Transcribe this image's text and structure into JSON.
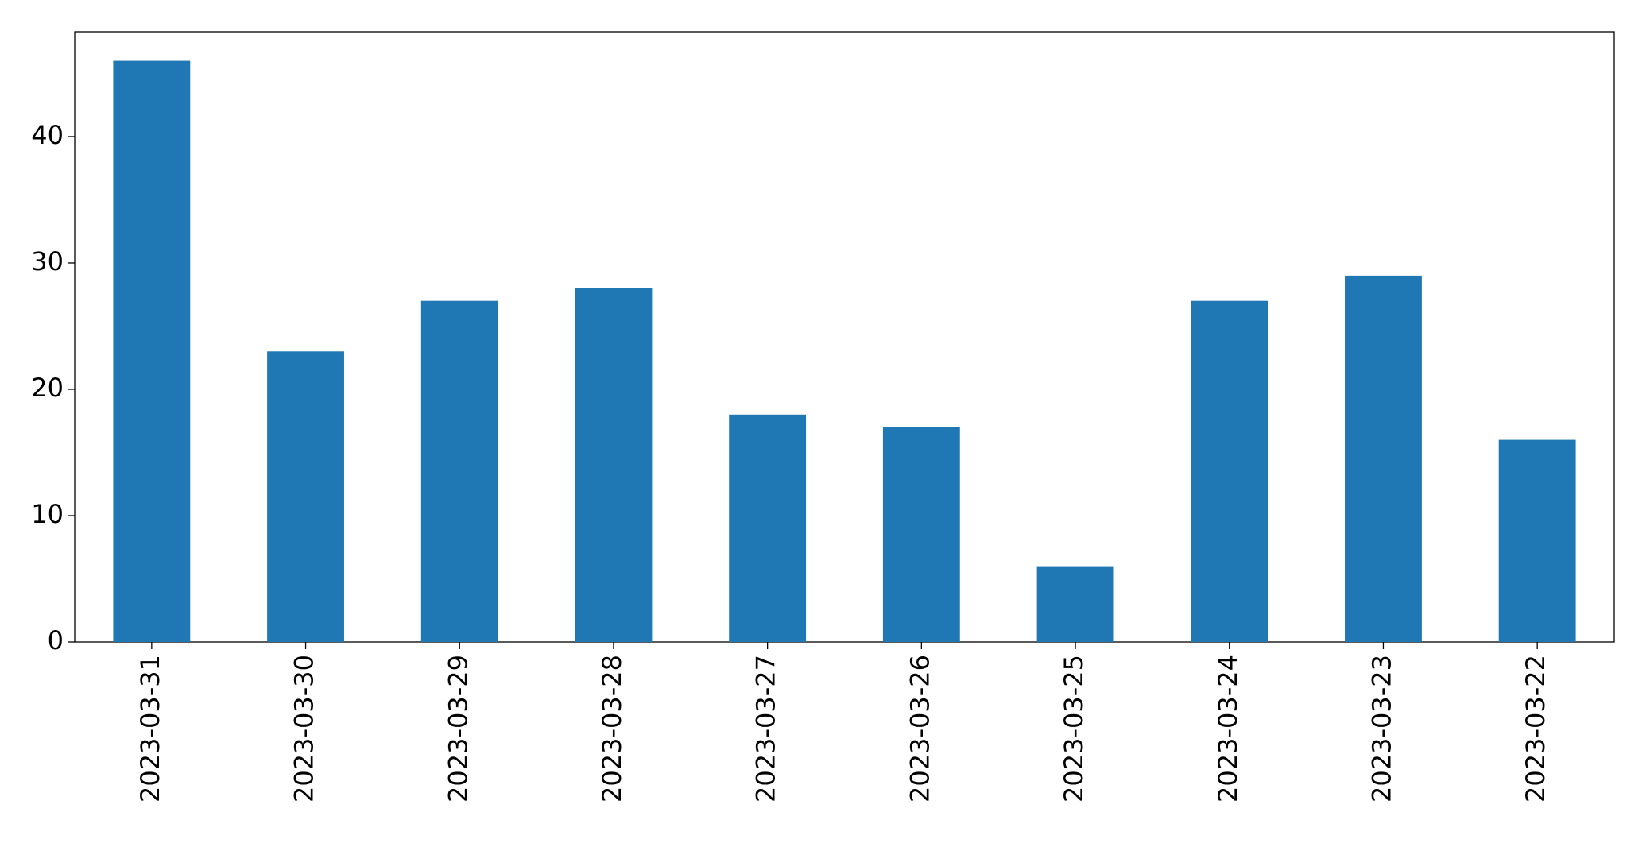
{
  "chart_data": {
    "type": "bar",
    "categories": [
      "2023-03-31",
      "2023-03-30",
      "2023-03-29",
      "2023-03-28",
      "2023-03-27",
      "2023-03-26",
      "2023-03-25",
      "2023-03-24",
      "2023-03-23",
      "2023-03-22"
    ],
    "values": [
      46,
      23,
      27,
      28,
      18,
      17,
      6,
      27,
      29,
      16
    ],
    "color": "#1f77b4",
    "ylim": [
      0,
      48.3
    ],
    "yticks": [
      0,
      10,
      20,
      30,
      40
    ],
    "grid": false
  }
}
